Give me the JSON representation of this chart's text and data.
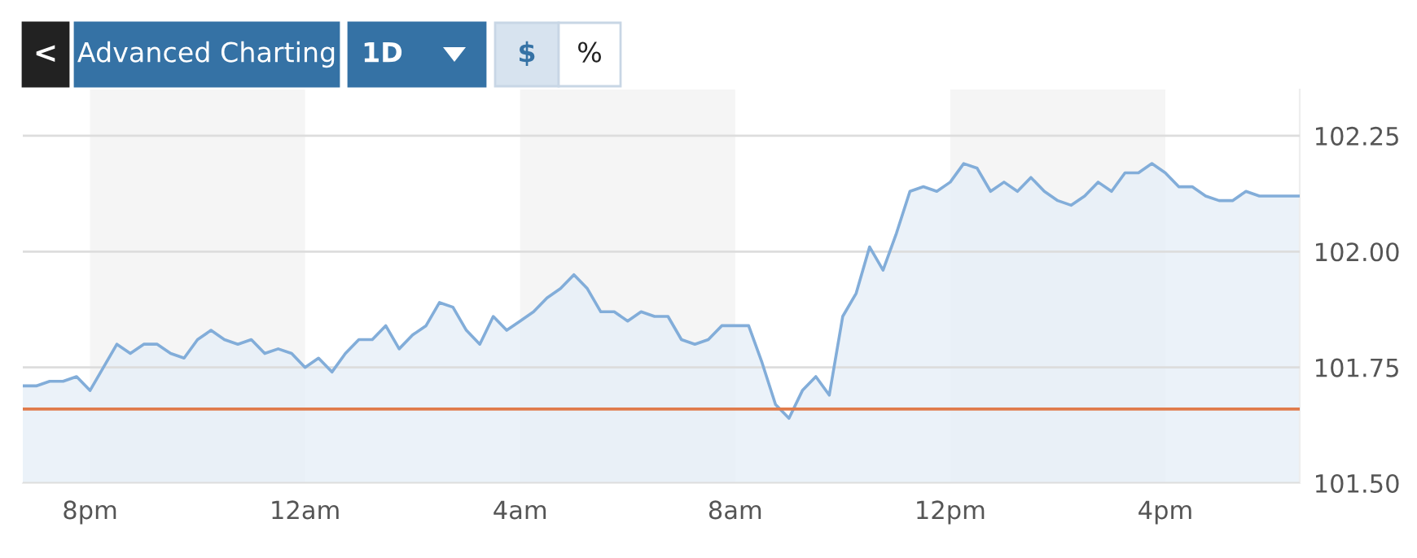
{
  "chart_data": {
    "type": "area",
    "categories": [
      null,
      null,
      null,
      null,
      null,
      "8pm",
      null,
      null,
      null,
      null,
      null,
      null,
      null,
      null,
      null,
      null,
      null,
      null,
      null,
      null,
      null,
      "12am",
      null,
      null,
      null,
      null,
      null,
      null,
      null,
      null,
      null,
      null,
      null,
      null,
      null,
      null,
      null,
      "4am",
      null,
      null,
      null,
      null,
      null,
      null,
      null,
      null,
      null,
      null,
      null,
      null,
      null,
      null,
      null,
      "8am",
      null,
      null,
      null,
      null,
      null,
      null,
      null,
      null,
      null,
      null,
      null,
      null,
      null,
      null,
      null,
      "12pm",
      null,
      null,
      null,
      null,
      null,
      null,
      null,
      null,
      null,
      null,
      null,
      null,
      null,
      null,
      null,
      "4pm",
      null,
      null,
      null,
      null,
      null,
      null,
      null,
      null,
      null,
      null
    ],
    "series": [
      {
        "color": "#82add9",
        "values": [
          101.71,
          101.71,
          101.72,
          101.72,
          101.73,
          101.7,
          101.75,
          101.8,
          101.78,
          101.8,
          101.8,
          101.78,
          101.77,
          101.81,
          101.83,
          101.81,
          101.8,
          101.81,
          101.78,
          101.79,
          101.78,
          101.75,
          101.77,
          101.74,
          101.78,
          101.81,
          101.81,
          101.84,
          101.79,
          101.82,
          101.84,
          101.89,
          101.88,
          101.83,
          101.8,
          101.86,
          101.83,
          101.85,
          101.87,
          101.9,
          101.92,
          101.95,
          101.92,
          101.87,
          101.87,
          101.85,
          101.87,
          101.86,
          101.86,
          101.81,
          101.8,
          101.81,
          101.84,
          101.84,
          101.84,
          101.76,
          101.67,
          101.64,
          101.7,
          101.73,
          101.69,
          101.86,
          101.91,
          102.01,
          101.96,
          102.04,
          102.13,
          102.14,
          102.13,
          102.15,
          102.19,
          102.18,
          102.13,
          102.15,
          102.13,
          102.16,
          102.13,
          102.11,
          102.1,
          102.12,
          102.15,
          102.13,
          102.17,
          102.17,
          102.19,
          102.17,
          102.14,
          102.14,
          102.12,
          102.11,
          102.11,
          102.13,
          102.12,
          102.12,
          102.12,
          102.12
        ]
      }
    ],
    "ylim": [
      101.5,
      102.35
    ],
    "yticks": [
      {
        "value": 101.5,
        "label": "101.50"
      },
      {
        "value": 101.75,
        "label": "101.75"
      },
      {
        "value": 102.0,
        "label": "102.00"
      },
      {
        "value": 102.25,
        "label": "102.25"
      }
    ],
    "grid": "y",
    "ref_lines": [
      {
        "axis": "y",
        "value": 101.66,
        "color": "#e07b4b"
      }
    ],
    "bands": [
      {
        "axis": "x",
        "from": "8pm",
        "to": "12am",
        "color": "#f5f5f5"
      },
      {
        "axis": "x",
        "from": "4am",
        "to": "8am",
        "color": "#f5f5f5"
      },
      {
        "axis": "x",
        "from": "12pm",
        "to": "4pm",
        "color": "#f5f5f5"
      }
    ],
    "annotations": [
      "<",
      "Advanced Charting",
      "1D",
      "$",
      "%"
    ]
  }
}
